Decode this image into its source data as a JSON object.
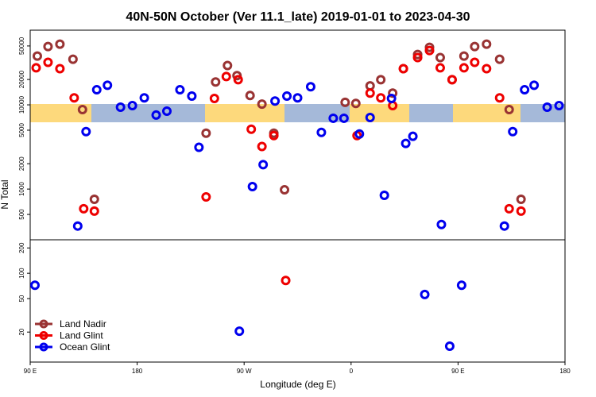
{
  "chart_data": {
    "type": "scatter",
    "title": "40N-50N October (Ver 11.1_late)   2019-01-01 to 2023-04-30",
    "x_label": "Longitude (deg E)",
    "y_label": "N Total",
    "log_y": true,
    "xlim": [
      90,
      540
    ],
    "xticks": [
      {
        "value": 90,
        "label": "90 E"
      },
      180,
      {
        "value": 270,
        "label": "90 W"
      },
      {
        "value": 360,
        "label": "0"
      },
      {
        "value": 450,
        "label": "90 E"
      },
      {
        "value": 540,
        "label": "180"
      }
    ],
    "ylim": [
      250,
      77000
    ],
    "yticks": [
      500,
      1000,
      2000,
      5000,
      10000,
      20000,
      50000
    ],
    "ylim_lower": [
      8.8,
      250
    ],
    "yticks_lower": [
      20,
      50,
      100,
      200
    ],
    "legend": "lower left",
    "series": [
      {
        "name": "Land Nadir",
        "color": "#993333",
        "x": [
          96,
          105,
          115,
          126,
          134,
          144,
          238,
          246,
          256,
          264,
          275,
          285,
          295,
          304,
          355,
          364,
          376,
          385,
          395,
          404,
          416,
          426,
          435,
          445,
          455,
          464,
          474,
          485,
          493,
          503
        ],
        "values": [
          37900,
          49200,
          52500,
          34800,
          8790,
          756,
          4610,
          18700,
          29300,
          22200,
          12900,
          10200,
          4610,
          980,
          10700,
          10400,
          16800,
          19900,
          13800,
          26900,
          39600,
          48100,
          36400,
          19900,
          37900,
          49200,
          52500,
          34800,
          8790,
          756
        ],
        "lower_x": [],
        "lower_values": []
      },
      {
        "name": "Land Glint",
        "color": "#ee0000",
        "x": [
          95,
          105,
          115,
          127,
          135,
          144,
          238,
          245,
          255,
          265,
          276,
          285,
          295,
          365,
          376,
          385,
          395,
          404,
          416,
          426,
          435,
          445,
          455,
          464,
          474,
          485,
          493,
          503
        ],
        "values": [
          27500,
          32000,
          26900,
          12100,
          584,
          548,
          807,
          11900,
          21700,
          19900,
          5130,
          3200,
          4320,
          4320,
          13800,
          12100,
          9790,
          26900,
          36400,
          44200,
          27500,
          19900,
          27500,
          32000,
          26900,
          12100,
          584,
          548
        ],
        "lower_x": [
          305
        ],
        "lower_values": [
          82
        ]
      },
      {
        "name": "Ocean Glint",
        "color": "#0000ee",
        "x": [
          137,
          130,
          146,
          155,
          166,
          176,
          186,
          196,
          205,
          216,
          226,
          232,
          277,
          286,
          296,
          306,
          315,
          326,
          335,
          345,
          354,
          367,
          376,
          388,
          394,
          406,
          412,
          436,
          489,
          496,
          506,
          514,
          525,
          535
        ],
        "values": [
          4810,
          364,
          15100,
          17100,
          9370,
          9790,
          12100,
          7560,
          8410,
          15100,
          12700,
          3130,
          1070,
          1950,
          11100,
          12700,
          12100,
          16400,
          4710,
          6930,
          6930,
          4510,
          7080,
          842,
          11900,
          3480,
          4230,
          380,
          364,
          4810,
          15100,
          17100,
          9370,
          9790
        ],
        "lower_x": [
          94,
          266,
          422,
          443,
          453
        ],
        "lower_values": [
          72,
          20.5,
          56,
          13.6,
          72
        ]
      }
    ]
  }
}
